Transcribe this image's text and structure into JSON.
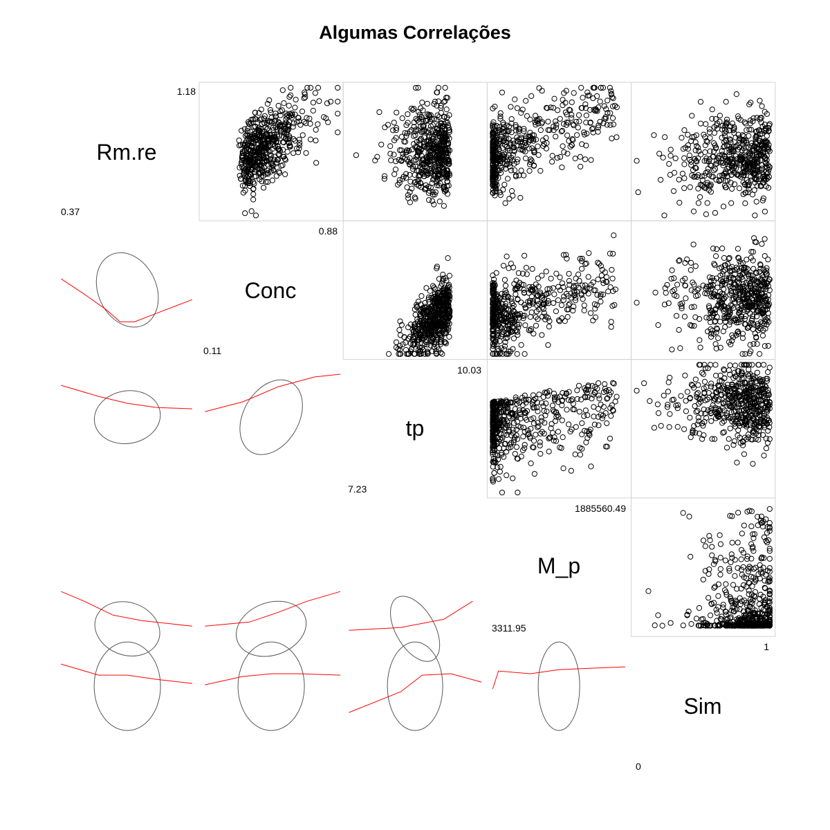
{
  "chart_data": {
    "type": "scatter",
    "title": "Algumas Correlações",
    "variables": [
      {
        "name": "Rm.re",
        "min": "0.37",
        "max": "1.18"
      },
      {
        "name": "Conc",
        "min": "0.11",
        "max": "0.88"
      },
      {
        "name": "tp",
        "min": "7.23",
        "max": "10.03"
      },
      {
        "name": "M_p",
        "min": "3311.95",
        "max": "1885560.49"
      },
      {
        "name": "Sim",
        "min": "0",
        "max": "1"
      }
    ],
    "upper_panels": "scatter",
    "lower_panels": "correlation-ellipse-with-loess-smooth",
    "diagonal": "variable-name-with-range",
    "grid": false,
    "point_style": "open-circle",
    "colors": {
      "points": "#000000",
      "ellipse": "#555555",
      "smooth": "#ff0000",
      "frame": "#d3d3d3"
    }
  }
}
